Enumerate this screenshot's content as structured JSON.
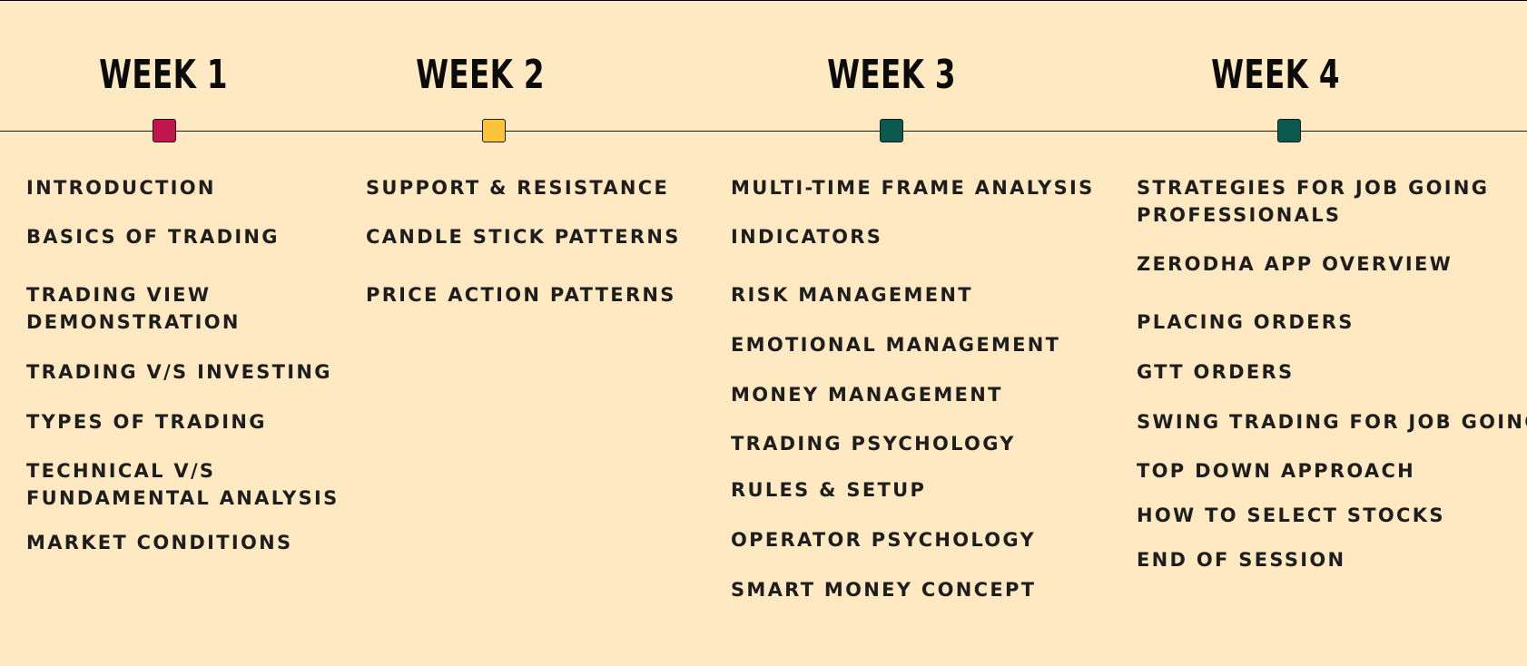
{
  "colors": {
    "background": "#fee9c2",
    "line": "#1a1a1a",
    "week1_marker": "#c2144f",
    "week2_marker": "#fcc43c",
    "week3_marker": "#0b5a50",
    "week4_marker": "#0b5a50"
  },
  "weeks": [
    {
      "title": "WEEK 1",
      "topics": [
        "INTRODUCTION",
        "BASICS OF TRADING",
        "TRADING VIEW",
        "DEMONSTRATION",
        "TRADING V/S INVESTING",
        "TYPES OF TRADING",
        "TECHNICAL V/S",
        "FUNDAMENTAL ANALYSIS",
        "MARKET CONDITIONS"
      ]
    },
    {
      "title": "WEEK 2",
      "topics": [
        "SUPPORT & RESISTANCE",
        "CANDLE STICK PATTERNS",
        "PRICE ACTION PATTERNS"
      ]
    },
    {
      "title": "WEEK 3",
      "topics": [
        "MULTI-TIME FRAME ANALYSIS",
        "INDICATORS",
        "RISK MANAGEMENT",
        "EMOTIONAL MANAGEMENT",
        "MONEY MANAGEMENT",
        "TRADING PSYCHOLOGY",
        "RULES & SETUP",
        "OPERATOR PSYCHOLOGY",
        "SMART MONEY CONCEPT"
      ]
    },
    {
      "title": "WEEK 4",
      "topics": [
        "STRATEGIES FOR JOB GOING",
        "PROFESSIONALS",
        "ZERODHA APP OVERVIEW",
        "PLACING ORDERS",
        "GTT ORDERS",
        "SWING TRADING FOR JOB GOING",
        "TOP DOWN APPROACH",
        "HOW TO SELECT STOCKS",
        "END OF SESSION"
      ]
    }
  ]
}
